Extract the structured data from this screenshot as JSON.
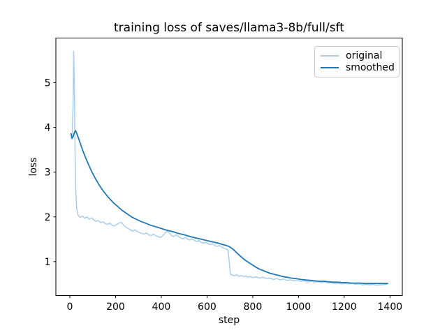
{
  "chart_data": {
    "type": "line",
    "title": "training loss of saves/llama3-8b/full/sft",
    "xlabel": "step",
    "ylabel": "loss",
    "xlim": [
      -61,
      1454
    ],
    "ylim": [
      0.24,
      6.0
    ],
    "x_ticks": [
      0,
      200,
      400,
      600,
      800,
      1000,
      1200,
      1400
    ],
    "y_ticks": [
      1,
      2,
      3,
      4,
      5
    ],
    "grid": false,
    "legend_position": "upper right",
    "background_color": "#ffffff",
    "axis_color": "#000000",
    "series": [
      {
        "name": "original",
        "color": "#abcde9",
        "line_width": 1.5,
        "points": [
          [
            5,
            3.78
          ],
          [
            10,
            3.74
          ],
          [
            14,
            4.5
          ],
          [
            17,
            5.7
          ],
          [
            20,
            4.9
          ],
          [
            23,
            3.4
          ],
          [
            26,
            2.6
          ],
          [
            30,
            2.18
          ],
          [
            36,
            2.04
          ],
          [
            45,
            1.99
          ],
          [
            55,
            2.02
          ],
          [
            65,
            1.97
          ],
          [
            75,
            2.0
          ],
          [
            85,
            1.95
          ],
          [
            95,
            1.98
          ],
          [
            105,
            1.93
          ],
          [
            115,
            1.9
          ],
          [
            125,
            1.92
          ],
          [
            135,
            1.87
          ],
          [
            145,
            1.89
          ],
          [
            155,
            1.85
          ],
          [
            165,
            1.83
          ],
          [
            175,
            1.86
          ],
          [
            185,
            1.81
          ],
          [
            195,
            1.8
          ],
          [
            205,
            1.83
          ],
          [
            215,
            1.86
          ],
          [
            225,
            1.88
          ],
          [
            235,
            1.82
          ],
          [
            245,
            1.77
          ],
          [
            255,
            1.74
          ],
          [
            265,
            1.71
          ],
          [
            275,
            1.68
          ],
          [
            285,
            1.71
          ],
          [
            295,
            1.67
          ],
          [
            305,
            1.65
          ],
          [
            315,
            1.63
          ],
          [
            325,
            1.61
          ],
          [
            335,
            1.64
          ],
          [
            345,
            1.6
          ],
          [
            355,
            1.58
          ],
          [
            365,
            1.61
          ],
          [
            375,
            1.58
          ],
          [
            385,
            1.56
          ],
          [
            395,
            1.54
          ],
          [
            405,
            1.57
          ],
          [
            415,
            1.63
          ],
          [
            425,
            1.68
          ],
          [
            435,
            1.64
          ],
          [
            445,
            1.58
          ],
          [
            455,
            1.56
          ],
          [
            465,
            1.6
          ],
          [
            475,
            1.56
          ],
          [
            485,
            1.53
          ],
          [
            495,
            1.51
          ],
          [
            505,
            1.54
          ],
          [
            515,
            1.5
          ],
          [
            525,
            1.48
          ],
          [
            535,
            1.51
          ],
          [
            545,
            1.47
          ],
          [
            555,
            1.45
          ],
          [
            565,
            1.47
          ],
          [
            575,
            1.43
          ],
          [
            585,
            1.41
          ],
          [
            595,
            1.43
          ],
          [
            605,
            1.4
          ],
          [
            615,
            1.38
          ],
          [
            625,
            1.4
          ],
          [
            635,
            1.36
          ],
          [
            645,
            1.34
          ],
          [
            655,
            1.36
          ],
          [
            665,
            1.32
          ],
          [
            675,
            1.3
          ],
          [
            685,
            1.28
          ],
          [
            692,
            1.26
          ],
          [
            697,
            1.0
          ],
          [
            702,
            0.72
          ],
          [
            710,
            0.7
          ],
          [
            720,
            0.68
          ],
          [
            730,
            0.71
          ],
          [
            740,
            0.67
          ],
          [
            750,
            0.69
          ],
          [
            760,
            0.66
          ],
          [
            770,
            0.68
          ],
          [
            780,
            0.65
          ],
          [
            790,
            0.67
          ],
          [
            800,
            0.64
          ],
          [
            815,
            0.66
          ],
          [
            830,
            0.63
          ],
          [
            845,
            0.65
          ],
          [
            860,
            0.62
          ],
          [
            875,
            0.63
          ],
          [
            890,
            0.6
          ],
          [
            905,
            0.62
          ],
          [
            920,
            0.59
          ],
          [
            935,
            0.61
          ],
          [
            950,
            0.58
          ],
          [
            965,
            0.59
          ],
          [
            980,
            0.57
          ],
          [
            995,
            0.58
          ],
          [
            1010,
            0.56
          ],
          [
            1025,
            0.57
          ],
          [
            1040,
            0.55
          ],
          [
            1055,
            0.56
          ],
          [
            1070,
            0.54
          ],
          [
            1085,
            0.55
          ],
          [
            1100,
            0.53
          ],
          [
            1115,
            0.54
          ],
          [
            1130,
            0.52
          ],
          [
            1145,
            0.53
          ],
          [
            1160,
            0.51
          ],
          [
            1175,
            0.52
          ],
          [
            1190,
            0.5
          ],
          [
            1205,
            0.51
          ],
          [
            1220,
            0.5
          ],
          [
            1235,
            0.51
          ],
          [
            1250,
            0.49
          ],
          [
            1265,
            0.5
          ],
          [
            1280,
            0.48
          ],
          [
            1295,
            0.49
          ],
          [
            1310,
            0.48
          ],
          [
            1325,
            0.49
          ],
          [
            1340,
            0.47
          ],
          [
            1355,
            0.48
          ],
          [
            1370,
            0.48
          ],
          [
            1380,
            0.49
          ],
          [
            1390,
            0.5
          ]
        ]
      },
      {
        "name": "smoothed",
        "color": "#1f77b4",
        "line_width": 1.8,
        "points": [
          [
            5,
            3.86
          ],
          [
            10,
            3.76
          ],
          [
            15,
            3.8
          ],
          [
            20,
            3.89
          ],
          [
            25,
            3.93
          ],
          [
            30,
            3.87
          ],
          [
            40,
            3.73
          ],
          [
            50,
            3.58
          ],
          [
            60,
            3.44
          ],
          [
            70,
            3.31
          ],
          [
            80,
            3.19
          ],
          [
            90,
            3.08
          ],
          [
            100,
            2.97
          ],
          [
            115,
            2.83
          ],
          [
            130,
            2.7
          ],
          [
            145,
            2.59
          ],
          [
            160,
            2.49
          ],
          [
            175,
            2.4
          ],
          [
            190,
            2.32
          ],
          [
            210,
            2.23
          ],
          [
            230,
            2.14
          ],
          [
            250,
            2.07
          ],
          [
            270,
            2.0
          ],
          [
            290,
            1.95
          ],
          [
            310,
            1.9
          ],
          [
            330,
            1.86
          ],
          [
            350,
            1.82
          ],
          [
            375,
            1.78
          ],
          [
            400,
            1.74
          ],
          [
            425,
            1.7
          ],
          [
            450,
            1.67
          ],
          [
            475,
            1.63
          ],
          [
            500,
            1.6
          ],
          [
            525,
            1.56
          ],
          [
            550,
            1.53
          ],
          [
            575,
            1.5
          ],
          [
            600,
            1.47
          ],
          [
            625,
            1.44
          ],
          [
            650,
            1.41
          ],
          [
            670,
            1.38
          ],
          [
            685,
            1.36
          ],
          [
            695,
            1.34
          ],
          [
            705,
            1.31
          ],
          [
            715,
            1.27
          ],
          [
            725,
            1.22
          ],
          [
            740,
            1.15
          ],
          [
            755,
            1.08
          ],
          [
            770,
            1.02
          ],
          [
            785,
            0.97
          ],
          [
            800,
            0.92
          ],
          [
            815,
            0.87
          ],
          [
            830,
            0.83
          ],
          [
            845,
            0.8
          ],
          [
            860,
            0.77
          ],
          [
            875,
            0.74
          ],
          [
            890,
            0.72
          ],
          [
            905,
            0.7
          ],
          [
            920,
            0.68
          ],
          [
            935,
            0.66
          ],
          [
            950,
            0.65
          ],
          [
            970,
            0.63
          ],
          [
            990,
            0.62
          ],
          [
            1010,
            0.6
          ],
          [
            1030,
            0.59
          ],
          [
            1050,
            0.58
          ],
          [
            1070,
            0.57
          ],
          [
            1090,
            0.56
          ],
          [
            1110,
            0.56
          ],
          [
            1130,
            0.55
          ],
          [
            1150,
            0.54
          ],
          [
            1170,
            0.54
          ],
          [
            1190,
            0.53
          ],
          [
            1210,
            0.53
          ],
          [
            1230,
            0.52
          ],
          [
            1250,
            0.52
          ],
          [
            1270,
            0.52
          ],
          [
            1290,
            0.51
          ],
          [
            1310,
            0.51
          ],
          [
            1330,
            0.51
          ],
          [
            1350,
            0.51
          ],
          [
            1370,
            0.51
          ],
          [
            1390,
            0.51
          ]
        ]
      }
    ]
  }
}
